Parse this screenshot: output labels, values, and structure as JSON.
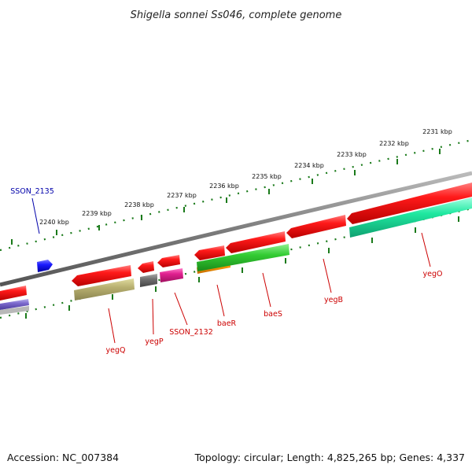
{
  "header": {
    "title": "Shigella sonnei Ss046, complete genome"
  },
  "footer": {
    "accession": "Accession: NC_007384",
    "summary": "Topology: circular; Length: 4,825,265 bp; Genes: 4,337"
  },
  "colors": {
    "backbone": "#7d7d7d",
    "tick": "#1a7a1a",
    "label_red": "#cc0000",
    "label_blue": "#0000aa",
    "gene_red": "#ff1a1a",
    "gene_blue": "#1a1aff",
    "gene_olive": "#b8b070",
    "gene_gray": "#707070",
    "gene_magenta": "#e0208f",
    "gene_green": "#33cc33",
    "gene_orange": "#ff9900",
    "gene_aqua": "#1fe8a0",
    "gene_purple": "#7b68cc"
  },
  "scale": {
    "unit": "kbp",
    "ticks": [
      {
        "kbp": 2231,
        "label": "2231 kbp"
      },
      {
        "kbp": 2232,
        "label": "2232 kbp"
      },
      {
        "kbp": 2233,
        "label": "2233 kbp"
      },
      {
        "kbp": 2234,
        "label": "2234 kbp"
      },
      {
        "kbp": 2235,
        "label": "2235 kbp"
      },
      {
        "kbp": 2236,
        "label": "2236 kbp"
      },
      {
        "kbp": 2237,
        "label": "2237 kbp"
      },
      {
        "kbp": 2238,
        "label": "2238 kbp"
      },
      {
        "kbp": 2239,
        "label": "2239 kbp"
      },
      {
        "kbp": 2240,
        "label": "2240 kbp"
      }
    ]
  },
  "gene_labels": [
    {
      "id": "SSON_2135",
      "text": "SSON_2135",
      "color": "#0000aa"
    },
    {
      "id": "yegQ",
      "text": "yegQ",
      "color": "#cc0000"
    },
    {
      "id": "yegP",
      "text": "yegP",
      "color": "#cc0000"
    },
    {
      "id": "SSON_2132",
      "text": "SSON_2132",
      "color": "#cc0000"
    },
    {
      "id": "baeR",
      "text": "baeR",
      "color": "#cc0000"
    },
    {
      "id": "baeS",
      "text": "baeS",
      "color": "#cc0000"
    },
    {
      "id": "yegB",
      "text": "yegB",
      "color": "#cc0000"
    },
    {
      "id": "yegO",
      "text": "yegO",
      "color": "#cc0000"
    }
  ]
}
